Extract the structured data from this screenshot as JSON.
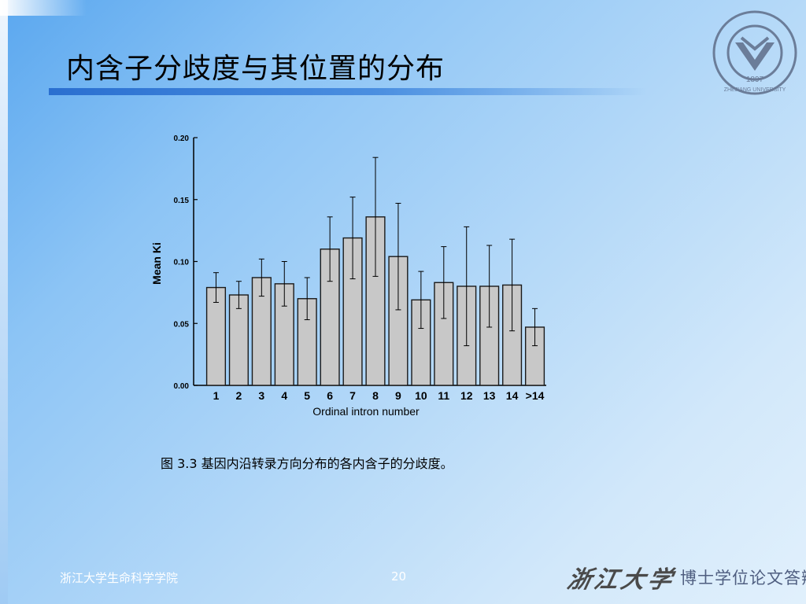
{
  "slide": {
    "title": "内含子分歧度与其位置的分布",
    "caption": "图 3.3 基因内沿转录方向分布的各内含子的分歧度。",
    "footer_left": "浙江大学生命科学学院",
    "page_number": "20",
    "brand_script": "浙江大学",
    "brand_sub": "博士学位论文答辩",
    "logo_year": "1897",
    "logo_text": "ZHEJIANG UNIVERSITY"
  },
  "colors": {
    "bar_fill": "#c8c8c8",
    "bar_stroke": "#1a1a1a",
    "logo": "#6b7d99"
  },
  "chart_data": {
    "type": "bar",
    "xlabel": "Ordinal intron number",
    "ylabel": "Mean Ki",
    "ylim": [
      0,
      0.2
    ],
    "yticks": [
      "0.00",
      "0.05",
      "0.10",
      "0.15",
      "0.20"
    ],
    "categories": [
      "1",
      "2",
      "3",
      "4",
      "5",
      "6",
      "7",
      "8",
      "9",
      "10",
      "11",
      "12",
      "13",
      "14",
      ">14"
    ],
    "values": [
      0.079,
      0.073,
      0.087,
      0.082,
      0.07,
      0.11,
      0.119,
      0.136,
      0.104,
      0.069,
      0.083,
      0.08,
      0.08,
      0.081,
      0.047
    ],
    "error": [
      0.012,
      0.011,
      0.015,
      0.018,
      0.017,
      0.026,
      0.033,
      0.048,
      0.043,
      0.023,
      0.029,
      0.048,
      0.033,
      0.037,
      0.015
    ],
    "grid": false,
    "legend": "none"
  }
}
